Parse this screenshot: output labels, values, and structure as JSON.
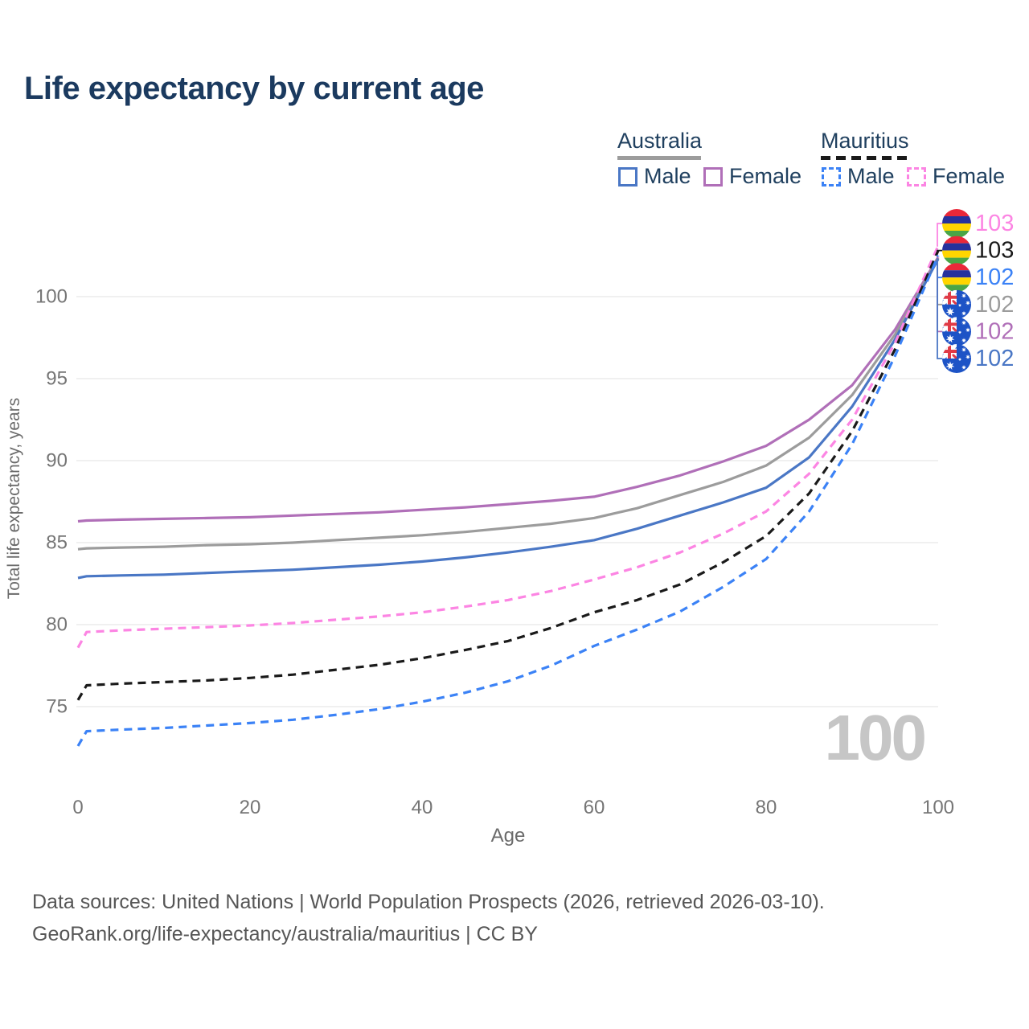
{
  "title": "Life expectancy by current age",
  "legend": {
    "groups": [
      {
        "label": "Australia",
        "line_style": "solid",
        "underline_color": "#9c9c9c",
        "items": [
          {
            "label": "Male",
            "color": "#4a77c5"
          },
          {
            "label": "Female",
            "color": "#b06fb8"
          }
        ]
      },
      {
        "label": "Mauritius",
        "line_style": "dashed",
        "underline_color": "#1a1a1a",
        "items": [
          {
            "label": "Male",
            "color": "#3b82f6"
          },
          {
            "label": "Female",
            "color": "#fc85e3"
          }
        ]
      }
    ]
  },
  "chart_data": {
    "type": "line",
    "title": "Life expectancy by current age",
    "xlabel": "Age",
    "ylabel": "Total life expectancy, years",
    "x_ticks": [
      0,
      20,
      40,
      60,
      80,
      100
    ],
    "y_ticks": [
      75,
      80,
      85,
      90,
      95,
      100
    ],
    "xlim": [
      0,
      100
    ],
    "ylim": [
      72,
      104
    ],
    "grid": "horizontal",
    "frame_label": "100",
    "grid_color": "#ececec",
    "tick_color": "#757575",
    "series": [
      {
        "name": "Australia Female",
        "country": "Australia",
        "sex": "Female",
        "color": "#b06fb8",
        "dash": false,
        "points": [
          [
            0,
            86.3
          ],
          [
            1,
            86.35
          ],
          [
            5,
            86.4
          ],
          [
            10,
            86.45
          ],
          [
            15,
            86.5
          ],
          [
            20,
            86.55
          ],
          [
            25,
            86.65
          ],
          [
            30,
            86.75
          ],
          [
            35,
            86.85
          ],
          [
            40,
            87.0
          ],
          [
            45,
            87.15
          ],
          [
            50,
            87.35
          ],
          [
            55,
            87.55
          ],
          [
            60,
            87.8
          ],
          [
            65,
            88.4
          ],
          [
            70,
            89.1
          ],
          [
            75,
            89.95
          ],
          [
            80,
            90.9
          ],
          [
            85,
            92.5
          ],
          [
            90,
            94.6
          ],
          [
            95,
            98.0
          ],
          [
            100,
            102.4
          ]
        ]
      },
      {
        "name": "Australia",
        "country": "Australia",
        "sex": "Both",
        "color": "#9c9c9c",
        "dash": false,
        "points": [
          [
            0,
            84.6
          ],
          [
            1,
            84.65
          ],
          [
            5,
            84.7
          ],
          [
            10,
            84.75
          ],
          [
            15,
            84.85
          ],
          [
            20,
            84.9
          ],
          [
            25,
            85.0
          ],
          [
            30,
            85.15
          ],
          [
            35,
            85.3
          ],
          [
            40,
            85.45
          ],
          [
            45,
            85.65
          ],
          [
            50,
            85.9
          ],
          [
            55,
            86.15
          ],
          [
            60,
            86.5
          ],
          [
            65,
            87.1
          ],
          [
            70,
            87.9
          ],
          [
            75,
            88.7
          ],
          [
            80,
            89.7
          ],
          [
            85,
            91.4
          ],
          [
            90,
            94.0
          ],
          [
            95,
            97.7
          ],
          [
            100,
            102.35
          ]
        ]
      },
      {
        "name": "Australia Male",
        "country": "Australia",
        "sex": "Male",
        "color": "#4a77c5",
        "dash": false,
        "points": [
          [
            0,
            82.85
          ],
          [
            1,
            82.95
          ],
          [
            5,
            83.0
          ],
          [
            10,
            83.05
          ],
          [
            15,
            83.15
          ],
          [
            20,
            83.25
          ],
          [
            25,
            83.35
          ],
          [
            30,
            83.5
          ],
          [
            35,
            83.65
          ],
          [
            40,
            83.85
          ],
          [
            45,
            84.1
          ],
          [
            50,
            84.4
          ],
          [
            55,
            84.75
          ],
          [
            60,
            85.15
          ],
          [
            65,
            85.85
          ],
          [
            70,
            86.65
          ],
          [
            75,
            87.45
          ],
          [
            80,
            88.35
          ],
          [
            85,
            90.2
          ],
          [
            90,
            93.3
          ],
          [
            95,
            97.4
          ],
          [
            100,
            102.3
          ]
        ]
      },
      {
        "name": "Mauritius Female",
        "country": "Mauritius",
        "sex": "Female",
        "color": "#fc85e3",
        "dash": true,
        "points": [
          [
            0,
            78.6
          ],
          [
            1,
            79.55
          ],
          [
            5,
            79.65
          ],
          [
            10,
            79.75
          ],
          [
            15,
            79.85
          ],
          [
            20,
            79.95
          ],
          [
            25,
            80.1
          ],
          [
            30,
            80.3
          ],
          [
            35,
            80.5
          ],
          [
            40,
            80.75
          ],
          [
            45,
            81.1
          ],
          [
            50,
            81.5
          ],
          [
            55,
            82.05
          ],
          [
            60,
            82.75
          ],
          [
            65,
            83.5
          ],
          [
            70,
            84.4
          ],
          [
            75,
            85.55
          ],
          [
            80,
            86.9
          ],
          [
            85,
            89.2
          ],
          [
            90,
            92.5
          ],
          [
            95,
            97.2
          ],
          [
            100,
            103.1
          ]
        ]
      },
      {
        "name": "Mauritius",
        "country": "Mauritius",
        "sex": "Both",
        "color": "#1a1a1a",
        "dash": true,
        "points": [
          [
            0,
            75.4
          ],
          [
            1,
            76.3
          ],
          [
            5,
            76.4
          ],
          [
            10,
            76.5
          ],
          [
            15,
            76.6
          ],
          [
            20,
            76.75
          ],
          [
            25,
            76.95
          ],
          [
            30,
            77.25
          ],
          [
            35,
            77.55
          ],
          [
            40,
            77.95
          ],
          [
            45,
            78.45
          ],
          [
            50,
            79.0
          ],
          [
            55,
            79.8
          ],
          [
            60,
            80.75
          ],
          [
            65,
            81.5
          ],
          [
            70,
            82.45
          ],
          [
            75,
            83.8
          ],
          [
            80,
            85.4
          ],
          [
            85,
            88.0
          ],
          [
            90,
            91.8
          ],
          [
            95,
            96.8
          ],
          [
            100,
            102.8
          ]
        ]
      },
      {
        "name": "Mauritius Male",
        "country": "Mauritius",
        "sex": "Male",
        "color": "#3b82f6",
        "dash": true,
        "points": [
          [
            0,
            72.6
          ],
          [
            1,
            73.5
          ],
          [
            5,
            73.6
          ],
          [
            10,
            73.7
          ],
          [
            15,
            73.85
          ],
          [
            20,
            74.0
          ],
          [
            25,
            74.2
          ],
          [
            30,
            74.5
          ],
          [
            35,
            74.85
          ],
          [
            40,
            75.3
          ],
          [
            45,
            75.85
          ],
          [
            50,
            76.55
          ],
          [
            55,
            77.5
          ],
          [
            60,
            78.7
          ],
          [
            65,
            79.7
          ],
          [
            70,
            80.8
          ],
          [
            75,
            82.3
          ],
          [
            80,
            84.0
          ],
          [
            85,
            86.9
          ],
          [
            90,
            91.0
          ],
          [
            95,
            96.4
          ],
          [
            100,
            102.5
          ]
        ]
      }
    ],
    "end_labels": [
      {
        "value": "103",
        "series": "Mauritius Female",
        "flag": "mauritius",
        "color": "#fc85e3"
      },
      {
        "value": "103",
        "series": "Mauritius",
        "flag": "mauritius",
        "color": "#1a1a1a"
      },
      {
        "value": "102",
        "series": "Mauritius Male",
        "flag": "mauritius",
        "color": "#3b82f6"
      },
      {
        "value": "102",
        "series": "Australia",
        "flag": "australia",
        "color": "#9c9c9c"
      },
      {
        "value": "102",
        "series": "Australia Female",
        "flag": "australia",
        "color": "#b06fb8"
      },
      {
        "value": "102",
        "series": "Australia Male",
        "flag": "australia",
        "color": "#4a77c5"
      }
    ],
    "legend_position": "top-right"
  },
  "footer": {
    "line1": "Data sources: United Nations | World Population Prospects (2026, retrieved 2026-03-10).",
    "line2": "GeoRank.org/life-expectancy/australia/mauritius | CC BY"
  }
}
